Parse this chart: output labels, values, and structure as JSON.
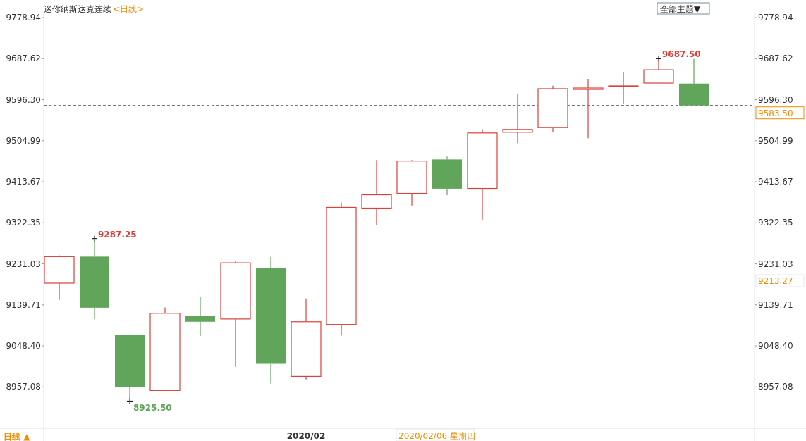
{
  "chart_data": {
    "type": "candlestick",
    "title": "迷你纳斯达克连续",
    "subtitle": "<日线>",
    "categories": [
      null,
      null,
      null,
      null,
      null,
      null,
      null,
      "2020/02",
      null,
      null,
      null,
      null,
      null,
      null,
      null,
      null,
      null,
      null,
      null
    ],
    "ohlc": [
      [
        9188.0,
        9249.9,
        9150.7,
        9247.0
      ],
      [
        9247.0,
        9287.25,
        9107.7,
        9133.3
      ],
      [
        9072.5,
        9074.0,
        8925.5,
        8956.4
      ],
      [
        8949.1,
        9133.7,
        8949.0,
        9120.9
      ],
      [
        9114.3,
        9157.2,
        9070.2,
        9102.1
      ],
      [
        9108.2,
        9238.2,
        9001.6,
        9233.2
      ],
      [
        9222.5,
        9246.6,
        8964.2,
        9010.0
      ],
      [
        8980.4,
        9153.9,
        8973.7,
        9102.1
      ],
      [
        9096.0,
        9367.0,
        9071.0,
        9356.6
      ],
      [
        9355.0,
        9461.8,
        9316.9,
        9384.7
      ],
      [
        9387.8,
        9461.8,
        9360.7,
        9459.7
      ],
      [
        9463.3,
        9469.6,
        9384.1,
        9398.2
      ],
      [
        9398.8,
        9530.5,
        9329.4,
        9522.2
      ],
      [
        9523.8,
        9608.6,
        9499.7,
        9530.0
      ],
      [
        9534.7,
        9627.4,
        9523.8,
        9620.7
      ],
      [
        9619.1,
        9642.5,
        9510.7,
        9622.2
      ],
      [
        9625.5,
        9658.2,
        9587.2,
        9627.0
      ],
      [
        9633.2,
        9687.5,
        9633.0,
        9662.8
      ],
      [
        9632.1,
        9686.8,
        9582.0,
        9583.5
      ]
    ],
    "colors": [
      "#d9413b",
      "#60a55a",
      "#60a55a",
      "#d9413b",
      "#60a55a",
      "#d9413b",
      "#60a55a",
      "#d9413b",
      "#d9413b",
      "#d9413b",
      "#d9413b",
      "#60a55a",
      "#d9413b",
      "#d9413b",
      "#d9413b",
      "#d9413b",
      "#d9413b",
      "#d9413b",
      "#60a55a"
    ],
    "ylim": [
      8865,
      9790
    ],
    "yticks": [
      9778.94,
      9687.62,
      {
        "value": 9596.3,
        "label": "9596.30"
      },
      9504.99,
      9413.67,
      9322.35,
      9231.03,
      9139.71,
      {
        "value": 9048.4,
        "label": "9048.40"
      },
      8957.08
    ],
    "y2lim": [
      8865,
      9790
    ],
    "y2ticks": [
      9778.94,
      9687.62,
      {
        "value": 9596.3,
        "label": "9596.30"
      },
      9504.99,
      9413.67,
      9322.35,
      9231.03,
      9139.71,
      {
        "value": 9048.4,
        "label": "9048.40"
      },
      8957.08
    ],
    "ref_lines": [
      {
        "axis": "y",
        "value": 9583.5,
        "label": "9583.50",
        "color": "#555555",
        "line_style": "dashed"
      }
    ],
    "annotations": [
      "9287.25",
      "8925.50",
      "9687.50",
      "9213.27",
      "2020/02/06 星期四",
      "日线 ▲",
      "全部主题▼"
    ],
    "grid": false
  }
}
